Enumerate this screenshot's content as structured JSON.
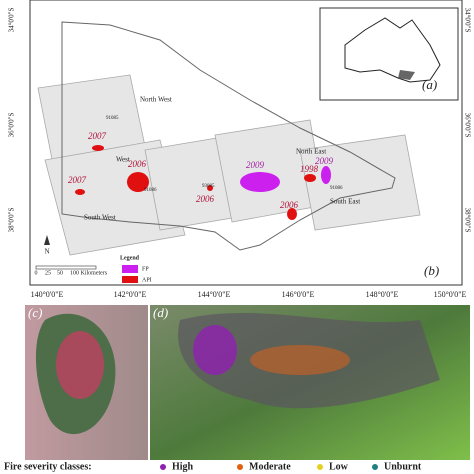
{
  "map": {
    "lat_labels": [
      "34°0'0\"S",
      "36°0'0\"S",
      "38°0'0\"S"
    ],
    "lon_labels": [
      "140°0'0\"E",
      "142°0'0\"E",
      "144°0'0\"E",
      "146°0'0\"E",
      "148°0'0\"E",
      "150°0'0\"E"
    ],
    "regions": [
      "North West",
      "West",
      "South West",
      "North East",
      "South East"
    ],
    "fire_years": [
      "2007",
      "2006",
      "2007",
      "2006",
      "2009",
      "1998",
      "2006",
      "2009"
    ],
    "tile_codes": [
      "91085",
      "91086",
      "93085",
      "91086"
    ],
    "legend": {
      "title": "Legend",
      "items": [
        "FP",
        "API"
      ]
    },
    "scale": [
      "0",
      "25",
      "50",
      "100 Kilometers"
    ],
    "north": "N",
    "panel_labels": [
      "(a)",
      "(b)",
      "(c)",
      "(d)"
    ]
  },
  "severity": {
    "title": "Fire severity classes:",
    "classes": [
      "High",
      "Moderate",
      "Low",
      "Unburnt"
    ]
  }
}
